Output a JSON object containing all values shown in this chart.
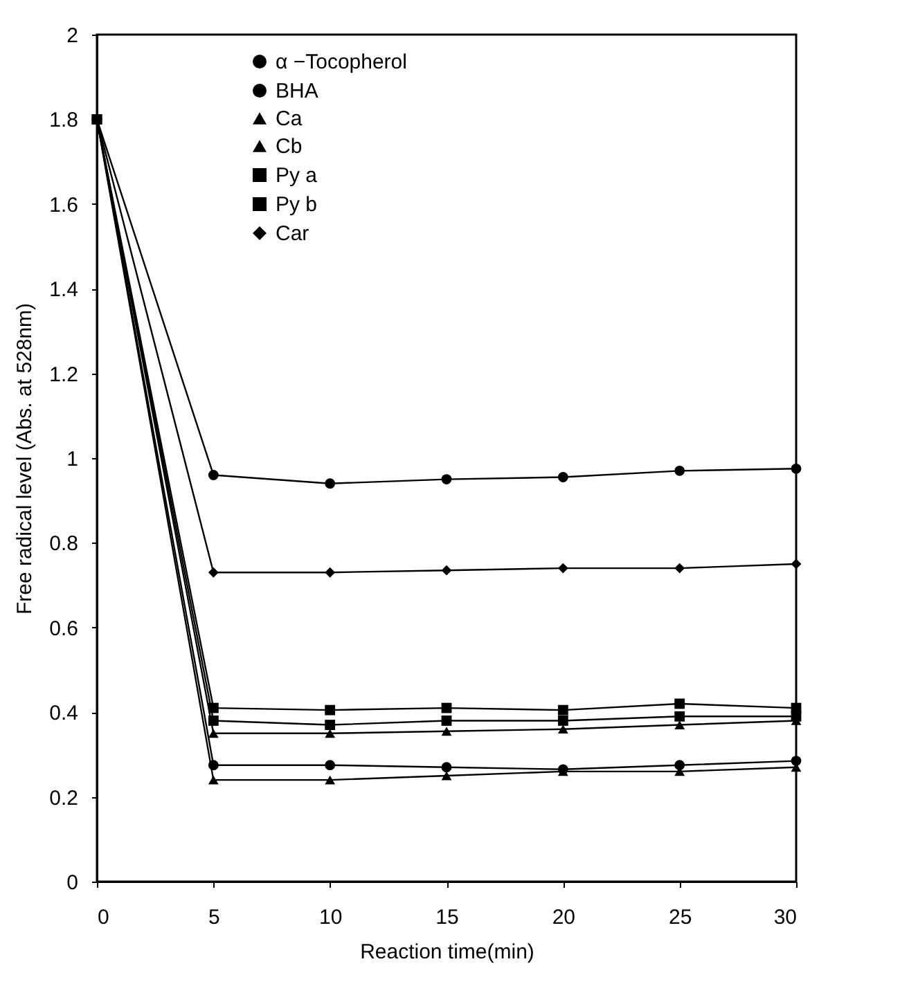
{
  "chart_data": {
    "type": "line",
    "xlabel": "Reaction time(min)",
    "ylabel": "Free radical level (Abs. at 528nm)",
    "x": [
      0,
      5,
      10,
      15,
      20,
      25,
      30
    ],
    "xlim": [
      0,
      30
    ],
    "xticks": [
      0,
      5,
      10,
      15,
      20,
      25,
      30
    ],
    "ylim": [
      0,
      2
    ],
    "yticks": [
      0,
      0.2,
      0.4,
      0.6,
      0.8,
      1,
      1.2,
      1.4,
      1.6,
      1.8,
      2
    ],
    "grid": false,
    "legend": "top left",
    "line_style": "solid",
    "series": [
      {
        "name": "α −Tocopherol",
        "color": "#000000",
        "marker": "circle",
        "values": [
          1.8,
          0.96,
          0.94,
          0.95,
          0.955,
          0.97,
          0.975
        ]
      },
      {
        "name": "BHA",
        "color": "#000000",
        "marker": "circle",
        "values": [
          1.8,
          0.275,
          0.275,
          0.27,
          0.265,
          0.275,
          0.285
        ]
      },
      {
        "name": "Ca",
        "color": "#000000",
        "marker": "triangle",
        "values": [
          1.8,
          0.24,
          0.24,
          0.25,
          0.26,
          0.26,
          0.27
        ]
      },
      {
        "name": "Cb",
        "color": "#000000",
        "marker": "triangle",
        "values": [
          1.8,
          0.35,
          0.35,
          0.355,
          0.36,
          0.37,
          0.38
        ]
      },
      {
        "name": "Py a",
        "color": "#000000",
        "marker": "square",
        "values": [
          1.8,
          0.38,
          0.37,
          0.38,
          0.38,
          0.39,
          0.39
        ]
      },
      {
        "name": "Py b",
        "color": "#000000",
        "marker": "square",
        "values": [
          1.8,
          0.41,
          0.405,
          0.41,
          0.405,
          0.42,
          0.41
        ]
      },
      {
        "name": "Car",
        "color": "#000000",
        "marker": "diamond",
        "values": [
          1.8,
          0.73,
          0.73,
          0.735,
          0.74,
          0.74,
          0.75
        ]
      }
    ]
  }
}
